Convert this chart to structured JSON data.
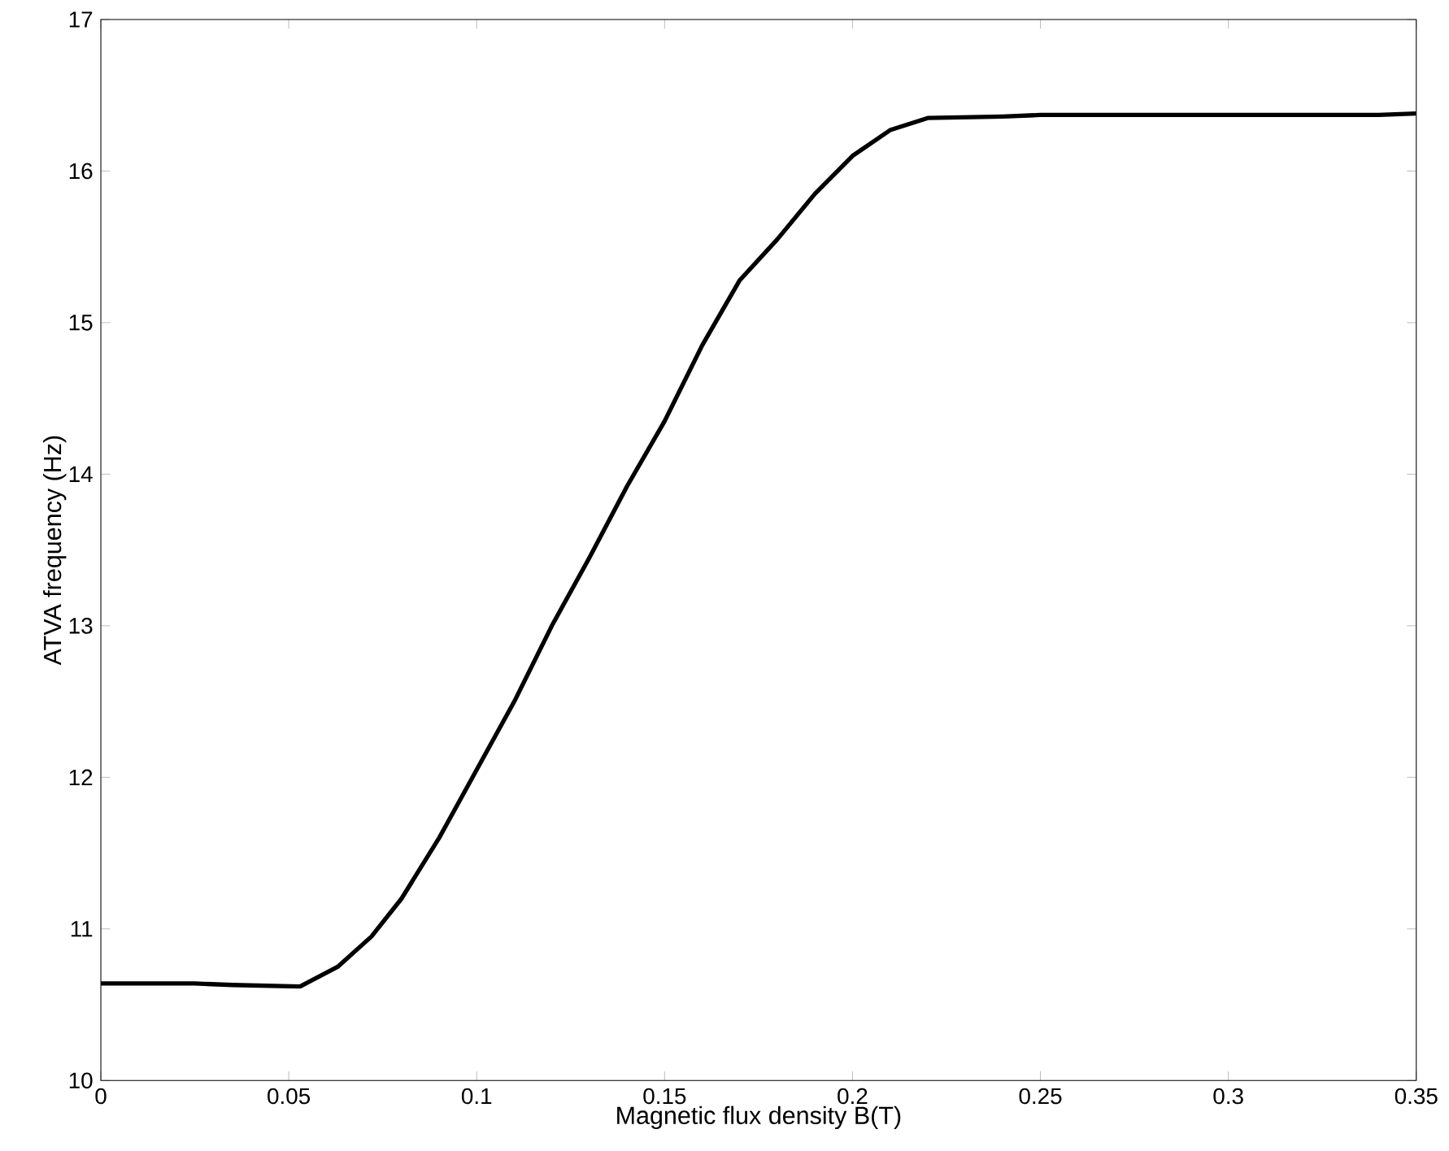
{
  "chart_data": {
    "type": "line",
    "xlabel": "Magnetic flux density B(T)",
    "ylabel": "ATVA frequency (Hz)",
    "x": [
      0,
      0.025,
      0.035,
      0.053,
      0.063,
      0.072,
      0.08,
      0.09,
      0.1,
      0.11,
      0.12,
      0.13,
      0.14,
      0.15,
      0.16,
      0.17,
      0.18,
      0.19,
      0.2,
      0.21,
      0.22,
      0.24,
      0.25,
      0.34,
      0.35
    ],
    "values": [
      10.64,
      10.64,
      10.63,
      10.62,
      10.75,
      10.95,
      11.2,
      11.6,
      12.05,
      12.5,
      13.0,
      13.45,
      13.92,
      14.35,
      14.85,
      15.28,
      15.55,
      15.85,
      16.1,
      16.27,
      16.35,
      16.36,
      16.37,
      16.37,
      16.38
    ],
    "color": "#000000",
    "xlim": [
      0,
      0.35
    ],
    "ylim": [
      10,
      17
    ],
    "xticks": [
      0,
      0.05,
      0.1,
      0.15,
      0.2,
      0.25,
      0.3,
      0.35
    ],
    "yticks": [
      10,
      11,
      12,
      13,
      14,
      15,
      16,
      17
    ]
  }
}
